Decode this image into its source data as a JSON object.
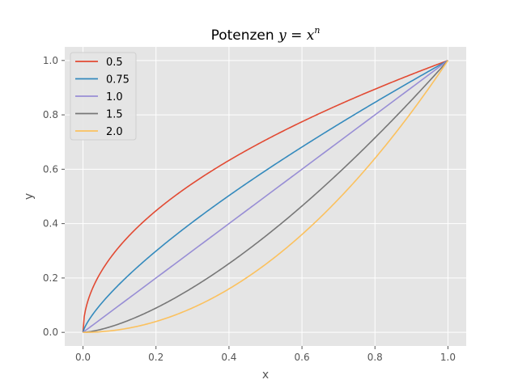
{
  "chart_data": {
    "type": "line",
    "title": "Potenzen",
    "title_math": "y = x",
    "title_exponent": "n",
    "xlabel": "x",
    "ylabel": "y",
    "xlim": [
      -0.05,
      1.05
    ],
    "ylim": [
      -0.05,
      1.05
    ],
    "xticks": [
      0.0,
      0.2,
      0.4,
      0.6,
      0.8,
      1.0
    ],
    "yticks": [
      0.0,
      0.2,
      0.4,
      0.6,
      0.8,
      1.0
    ],
    "xtick_labels": [
      "0.0",
      "0.2",
      "0.4",
      "0.6",
      "0.8",
      "1.0"
    ],
    "ytick_labels": [
      "0.0",
      "0.2",
      "0.4",
      "0.6",
      "0.8",
      "1.0"
    ],
    "grid": true,
    "legend_position": "top-left",
    "background_color": "#e5e5e5",
    "series": [
      {
        "name": "0.5",
        "exponent": 0.5,
        "color": "#e24a33"
      },
      {
        "name": "0.75",
        "exponent": 0.75,
        "color": "#348abd"
      },
      {
        "name": "1.0",
        "exponent": 1.0,
        "color": "#988ed5"
      },
      {
        "name": "1.5",
        "exponent": 1.5,
        "color": "#777777"
      },
      {
        "name": "2.0",
        "exponent": 2.0,
        "color": "#fbc15e"
      }
    ]
  }
}
